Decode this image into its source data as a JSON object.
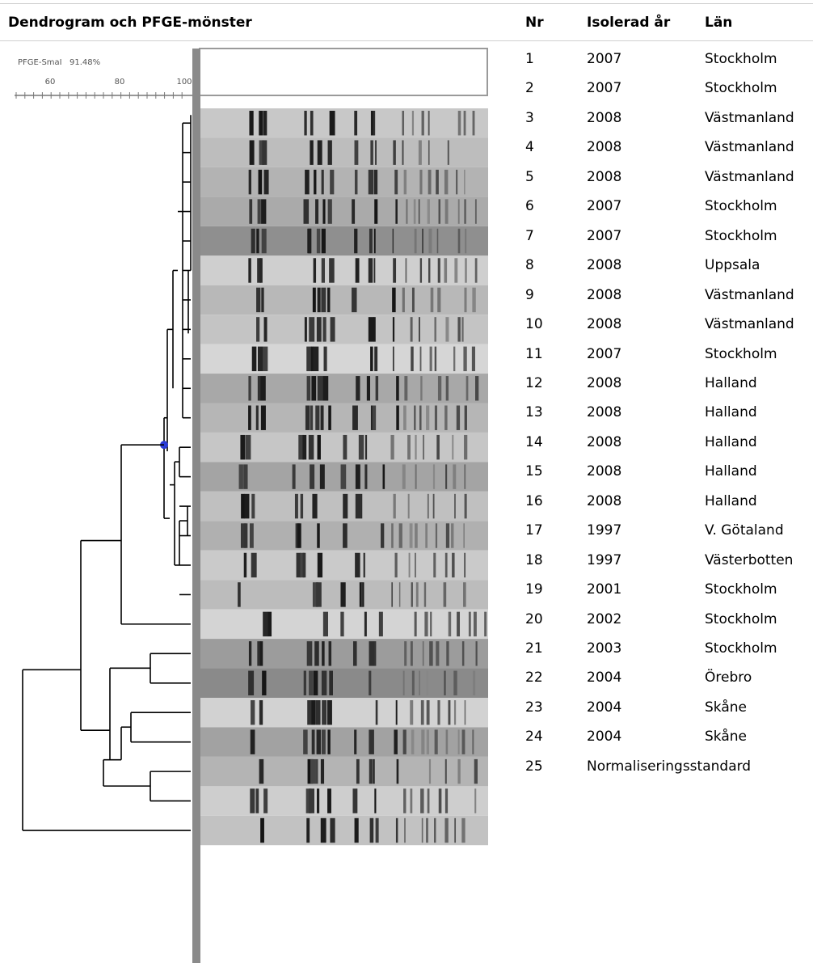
{
  "header": {
    "title": "Dendrogram och PFGE-mönster",
    "col_nr": "Nr",
    "col_year": "Isolerad år",
    "col_lan": "Län"
  },
  "scale": {
    "label": "PFGE-SmaI",
    "percent": "91.48%",
    "ticks": [
      "60",
      "80",
      "100"
    ]
  },
  "rows": [
    {
      "nr": "1",
      "year": "2007",
      "lan": "Stockholm"
    },
    {
      "nr": "2",
      "year": "2007",
      "lan": "Stockholm"
    },
    {
      "nr": "3",
      "year": "2008",
      "lan": "Västmanland"
    },
    {
      "nr": "4",
      "year": "2008",
      "lan": "Västmanland"
    },
    {
      "nr": "5",
      "year": "2008",
      "lan": "Västmanland"
    },
    {
      "nr": "6",
      "year": "2007",
      "lan": "Stockholm"
    },
    {
      "nr": "7",
      "year": "2007",
      "lan": "Stockholm"
    },
    {
      "nr": "8",
      "year": "2008",
      "lan": "Uppsala"
    },
    {
      "nr": "9",
      "year": "2008",
      "lan": "Västmanland"
    },
    {
      "nr": "10",
      "year": "2008",
      "lan": "Västmanland"
    },
    {
      "nr": "11",
      "year": "2007",
      "lan": "Stockholm"
    },
    {
      "nr": "12",
      "year": "2008",
      "lan": "Halland"
    },
    {
      "nr": "13",
      "year": "2008",
      "lan": "Halland"
    },
    {
      "nr": "14",
      "year": "2008",
      "lan": "Halland"
    },
    {
      "nr": "15",
      "year": "2008",
      "lan": "Halland"
    },
    {
      "nr": "16",
      "year": "2008",
      "lan": "Halland"
    },
    {
      "nr": "17",
      "year": "1997",
      "lan": "V. Götaland"
    },
    {
      "nr": "18",
      "year": "1997",
      "lan": "Västerbotten"
    },
    {
      "nr": "19",
      "year": "2001",
      "lan": "Stockholm"
    },
    {
      "nr": "20",
      "year": "2002",
      "lan": "Stockholm"
    },
    {
      "nr": "21",
      "year": "2003",
      "lan": "Stockholm"
    },
    {
      "nr": "22",
      "year": "2004",
      "lan": "Örebro"
    },
    {
      "nr": "23",
      "year": "2004",
      "lan": "Skåne"
    },
    {
      "nr": "24",
      "year": "2004",
      "lan": "Skåne"
    },
    {
      "nr": "25",
      "year": "Normaliseringsstandard",
      "lan": ""
    }
  ],
  "colors": {
    "dendrogram_line": "#000000",
    "node_marker": "#2a3bd6",
    "gel_background": "#bdbdbd"
  }
}
